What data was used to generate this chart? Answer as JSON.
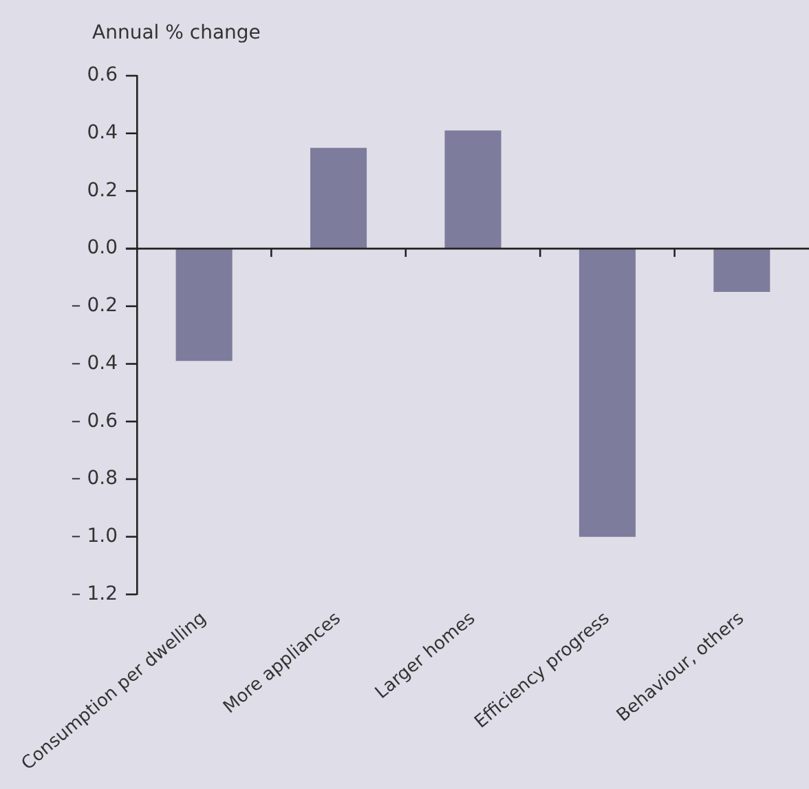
{
  "chart_data": {
    "type": "bar",
    "ylabel": "Annual % change",
    "categories": [
      "Consumption per dwelling",
      "More appliances",
      "Larger homes",
      "Efficiency progress",
      "Behaviour, others"
    ],
    "values": [
      -0.39,
      0.35,
      0.41,
      -1.0,
      -0.15
    ],
    "color": "#7e7c9c",
    "ylim": [
      -1.2,
      0.6
    ],
    "yticks": [
      {
        "value": 0.6,
        "label": "0.6"
      },
      {
        "value": 0.4,
        "label": "0.4"
      },
      {
        "value": 0.2,
        "label": "0.2"
      },
      {
        "value": 0,
        "label": "0.0"
      },
      {
        "value": -0.2,
        "label": "– 0.2"
      },
      {
        "value": -0.4,
        "label": "– 0.4"
      },
      {
        "value": -0.6,
        "label": "– 0.6"
      },
      {
        "value": -0.8,
        "label": "– 0.8"
      },
      {
        "value": -1.0,
        "label": "– 1.0"
      },
      {
        "value": -1.2,
        "label": "– 1.2"
      }
    ],
    "legend": false
  }
}
